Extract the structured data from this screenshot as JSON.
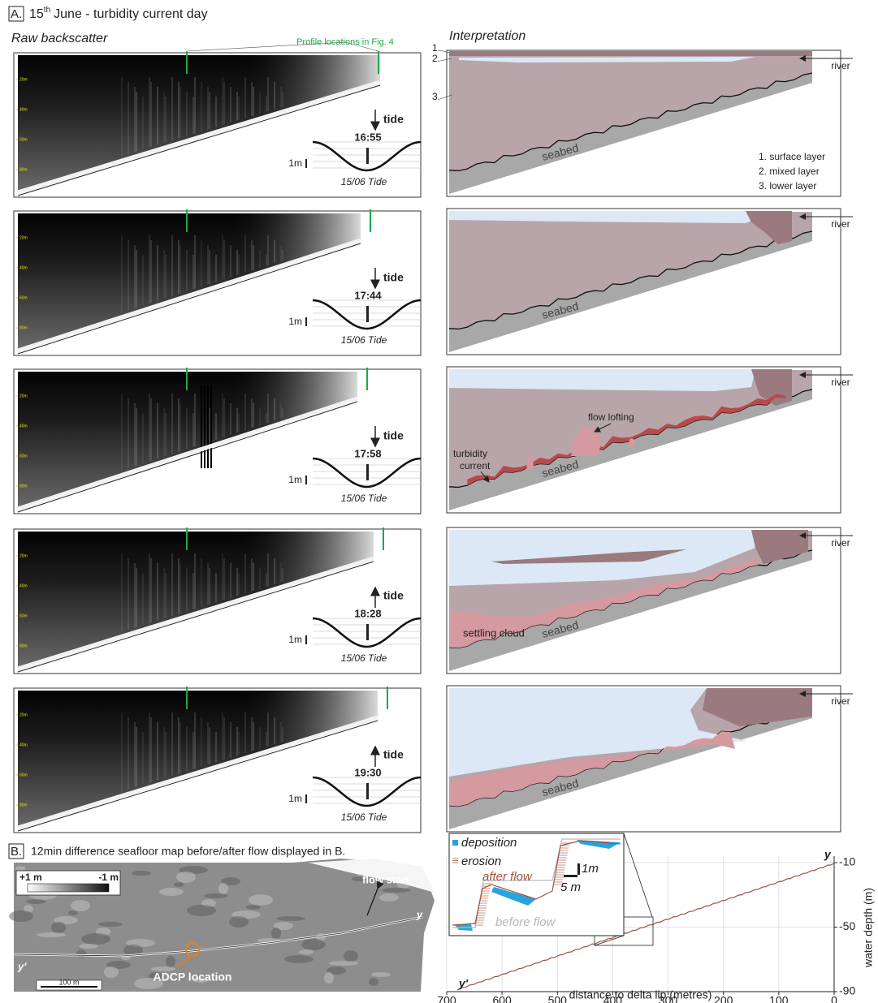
{
  "panel_a": {
    "label": "A.",
    "title_day": "15",
    "title_sup": "th",
    "title_rest": "June - turbidity current day",
    "raw_heading": "Raw backscatter",
    "interp_heading": "Interpretation",
    "profile_note": "Profile locations in Fig. 4",
    "depth_labels": [
      "20m",
      "40m",
      "60m",
      "80m"
    ],
    "layer_numbers": [
      "1.",
      "2.",
      "3."
    ],
    "legend": [
      "1. surface layer",
      "2. mixed layer",
      "3. lower layer"
    ],
    "rows": [
      {
        "tide_label": "tide",
        "tide_direction": "falling",
        "tide_time": "16:55",
        "scale": "1m",
        "tide_caption": "15/06 Tide",
        "river": "river",
        "seabed": "seabed"
      },
      {
        "tide_label": "tide",
        "tide_direction": "falling",
        "tide_time": "17:44",
        "scale": "1m",
        "tide_caption": "15/06 Tide",
        "river": "river",
        "seabed": "seabed"
      },
      {
        "tide_label": "tide",
        "tide_direction": "falling",
        "tide_time": "17:58",
        "scale": "1m",
        "tide_caption": "15/06 Tide",
        "river": "river",
        "seabed": "seabed",
        "flow_lofting": "flow lofting",
        "turbidity_current": [
          "turbidity",
          "current"
        ]
      },
      {
        "tide_label": "tide",
        "tide_direction": "rising",
        "tide_time": "18:28",
        "scale": "1m",
        "tide_caption": "15/06 Tide",
        "river": "river",
        "seabed": "seabed",
        "settling_cloud": "settling cloud"
      },
      {
        "tide_label": "tide",
        "tide_direction": "rising",
        "tide_time": "19:30",
        "scale": "1m",
        "tide_caption": "15/06 Tide",
        "river": "river",
        "seabed": "seabed"
      }
    ]
  },
  "panel_b": {
    "label": "B.",
    "caption": "12min difference seafloor map before/after flow displayed in B.",
    "scale_max": "+1 m",
    "scale_min": "-1 m",
    "flow_start": "flow start",
    "end_y": "y",
    "end_y_prime": "y'",
    "adcp": "ADCP location",
    "scale_bar": "100 m"
  },
  "profile": {
    "deposition": "deposition",
    "erosion": "erosion",
    "after_flow": "after flow",
    "before_flow": "before flow",
    "scale_v": "1m",
    "scale_h": "5 m",
    "end_y": "y",
    "end_y_prime": "y'",
    "xticks": [
      700,
      600,
      500,
      400,
      300,
      200,
      100,
      0
    ],
    "yticks": [
      -10,
      -50,
      -90
    ],
    "xlabel": "distance to delta lip (metres)",
    "ylabel": "water depth (m)"
  }
}
